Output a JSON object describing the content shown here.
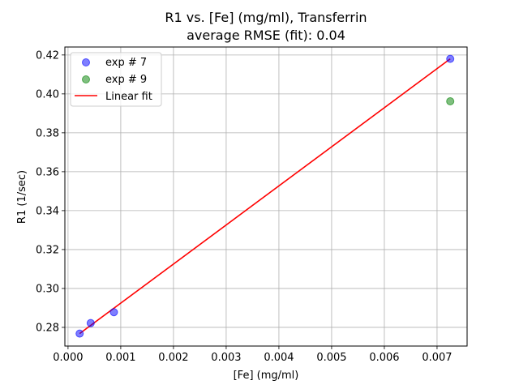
{
  "chart_data": {
    "type": "scatter",
    "title": [
      "R1 vs. [Fe] (mg/ml), Transferrin",
      "average RMSE (fit): 0.04"
    ],
    "xlabel": "[Fe] (mg/ml)",
    "ylabel": "R1 (1/sec)",
    "xlim": [
      -6e-05,
      0.00757
    ],
    "ylim": [
      0.2704,
      0.4241
    ],
    "xticks": [
      0.0,
      0.001,
      0.002,
      0.003,
      0.004,
      0.005,
      0.006,
      0.007
    ],
    "xtick_labels": [
      "0.000",
      "0.001",
      "0.002",
      "0.003",
      "0.004",
      "0.005",
      "0.006",
      "0.007"
    ],
    "yticks": [
      0.28,
      0.3,
      0.32,
      0.34,
      0.36,
      0.38,
      0.4,
      0.42
    ],
    "ytick_labels": [
      "0.28",
      "0.30",
      "0.32",
      "0.34",
      "0.36",
      "0.38",
      "0.40",
      "0.42"
    ],
    "grid": true,
    "legend_position": "upper-left",
    "series": [
      {
        "name": "exp # 7",
        "kind": "scatter",
        "color": "#0000ff",
        "x": [
          0.00022,
          0.00043,
          0.00087,
          0.00725
        ],
        "y": [
          0.2768,
          0.2822,
          0.2878,
          0.418
        ]
      },
      {
        "name": "exp # 9",
        "kind": "scatter",
        "color": "#008000",
        "x": [
          0.00725
        ],
        "y": [
          0.3962
        ]
      },
      {
        "name": "Linear fit",
        "kind": "line",
        "color": "#ff0000",
        "x": [
          0.00022,
          0.00725
        ],
        "y": [
          0.2768,
          0.418
        ]
      }
    ]
  }
}
